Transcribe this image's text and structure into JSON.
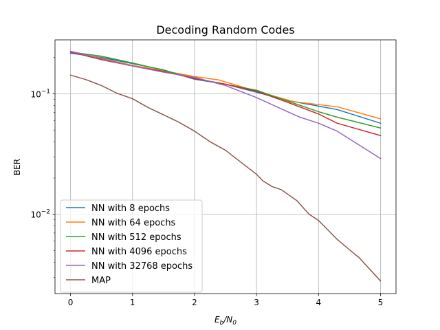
{
  "chart_data": {
    "type": "line",
    "title": "Decoding Random Codes",
    "xlabel_main": "E",
    "xlabel_sub1": "b",
    "xlabel_mid": "/N",
    "xlabel_sub2": "0",
    "ylabel": "BER",
    "yscale": "log",
    "xlim": [
      -0.25,
      5.25
    ],
    "ylim": [
      0.0022,
      0.28
    ],
    "grid": true,
    "legend_position": "lower-left",
    "x_ticks": [
      "0",
      "1",
      "2",
      "3",
      "4",
      "5"
    ],
    "y_ticks": [
      {
        "base": "10",
        "exp": "−1",
        "value": 0.1
      },
      {
        "base": "10",
        "exp": "−2",
        "value": 0.01
      }
    ],
    "series": [
      {
        "name": "NN with 8 epochs",
        "color": "#1f77b4",
        "x": [
          0,
          0.5,
          1,
          1.5,
          2,
          2.5,
          3,
          3.5,
          4,
          4.3,
          5
        ],
        "y": [
          0.217,
          0.2,
          0.178,
          0.158,
          0.132,
          0.12,
          0.103,
          0.088,
          0.079,
          0.074,
          0.057
        ]
      },
      {
        "name": "NN with 64 epochs",
        "color": "#ff7f0e",
        "x": [
          0,
          0.5,
          1,
          1.5,
          2,
          2.4,
          3,
          3.6,
          4.3,
          5
        ],
        "y": [
          0.225,
          0.197,
          0.172,
          0.155,
          0.139,
          0.13,
          0.105,
          0.086,
          0.078,
          0.062
        ]
      },
      {
        "name": "NN with 512 epochs",
        "color": "#2ca02c",
        "x": [
          0,
          0.5,
          1,
          1.5,
          2,
          2.5,
          3,
          3.5,
          4,
          4.3,
          5
        ],
        "y": [
          0.222,
          0.205,
          0.18,
          0.157,
          0.134,
          0.12,
          0.107,
          0.087,
          0.071,
          0.064,
          0.052
        ]
      },
      {
        "name": "NN with 4096 epochs",
        "color": "#d62728",
        "x": [
          0,
          0.5,
          1,
          1.5,
          2,
          2.5,
          3,
          3.5,
          4,
          4.3,
          5
        ],
        "y": [
          0.222,
          0.192,
          0.17,
          0.153,
          0.134,
          0.12,
          0.105,
          0.085,
          0.068,
          0.057,
          0.045
        ]
      },
      {
        "name": "NN with 32768 epochs",
        "color": "#9467bd",
        "x": [
          0,
          0.5,
          1,
          1.5,
          2,
          2.5,
          3,
          3.5,
          3.7,
          4,
          4.3,
          5
        ],
        "y": [
          0.225,
          0.195,
          0.17,
          0.151,
          0.137,
          0.117,
          0.093,
          0.071,
          0.064,
          0.057,
          0.049,
          0.029
        ]
      },
      {
        "name": "MAP",
        "color": "#8c564b",
        "x": [
          0,
          0.25,
          0.5,
          0.75,
          1,
          1.25,
          1.5,
          1.75,
          2,
          2.25,
          2.5,
          2.75,
          3,
          3.1,
          3.25,
          3.4,
          3.65,
          3.85,
          4,
          4.3,
          4.6,
          4.65,
          5
        ],
        "y": [
          0.143,
          0.131,
          0.117,
          0.101,
          0.091,
          0.077,
          0.067,
          0.058,
          0.049,
          0.04,
          0.034,
          0.027,
          0.0215,
          0.019,
          0.017,
          0.016,
          0.013,
          0.01,
          0.0089,
          0.0062,
          0.0046,
          0.0044,
          0.0028
        ]
      }
    ]
  }
}
